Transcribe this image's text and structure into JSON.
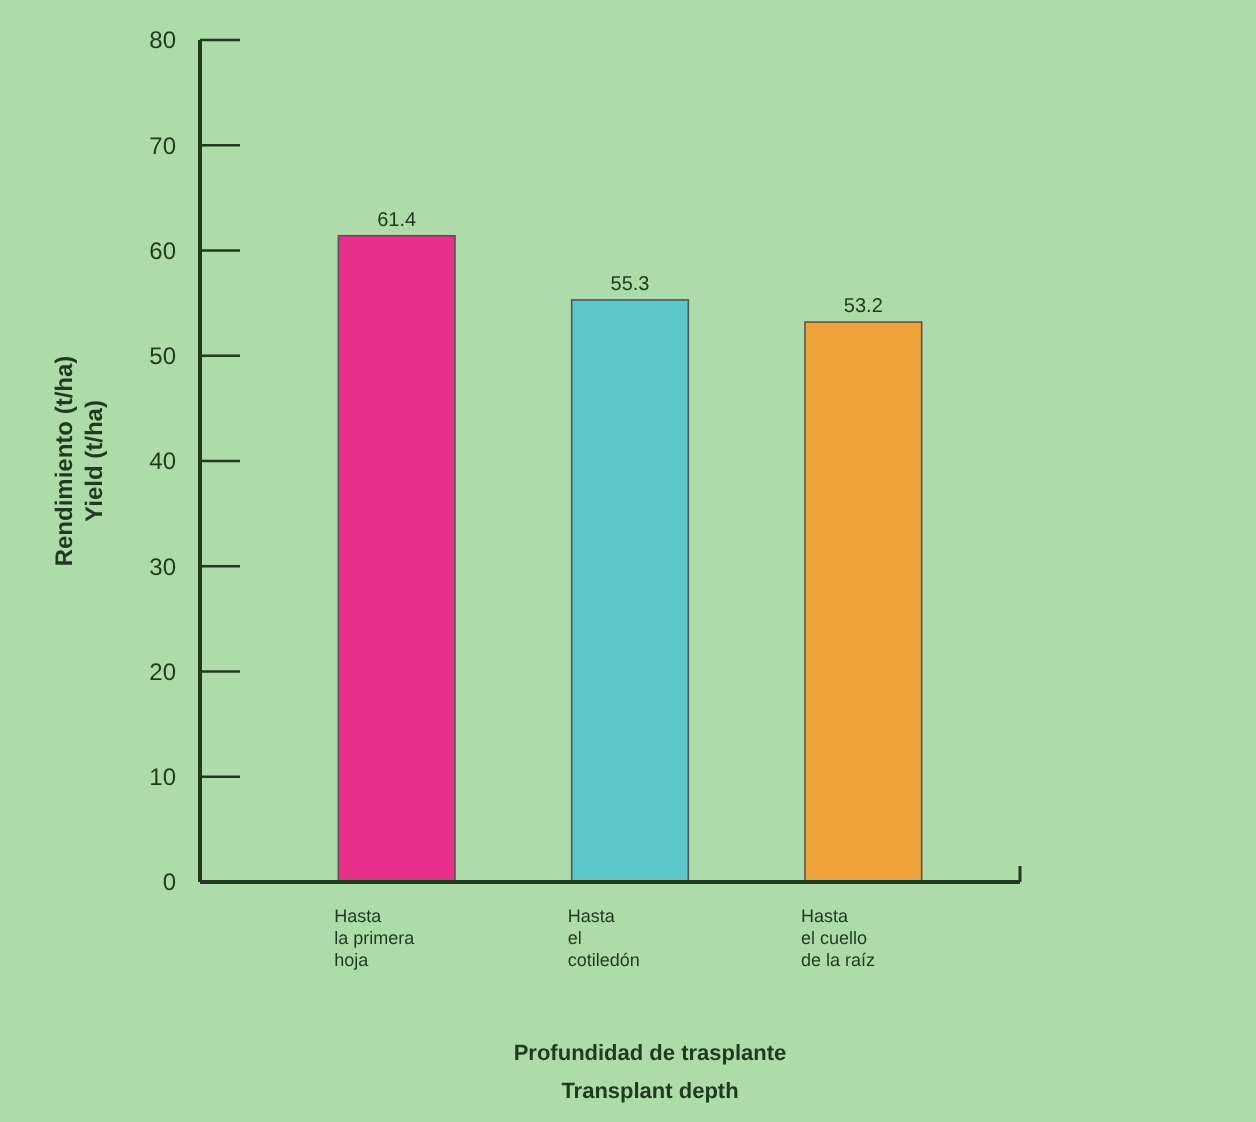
{
  "chart_data": {
    "type": "bar",
    "xlabel": "Profundidad de trasplante\nTransplant depth",
    "ylabel": "Rendimiento (t/ha)\nYield (t/ha)",
    "categories": [
      "Hasta\nla primera\nhoja",
      "Hasta\nel\ncotiledón",
      "Hasta\nel cuello\nde la raíz"
    ],
    "values": [
      61.4,
      55.3,
      53.2
    ],
    "colors": [
      "#e8308a",
      "#5cc6c8",
      "#f0a23a"
    ],
    "ylim": [
      0,
      80
    ],
    "yticks": [
      0,
      10,
      20,
      30,
      40,
      50,
      60,
      70,
      80
    ],
    "data_labels": true,
    "grid": false
  }
}
